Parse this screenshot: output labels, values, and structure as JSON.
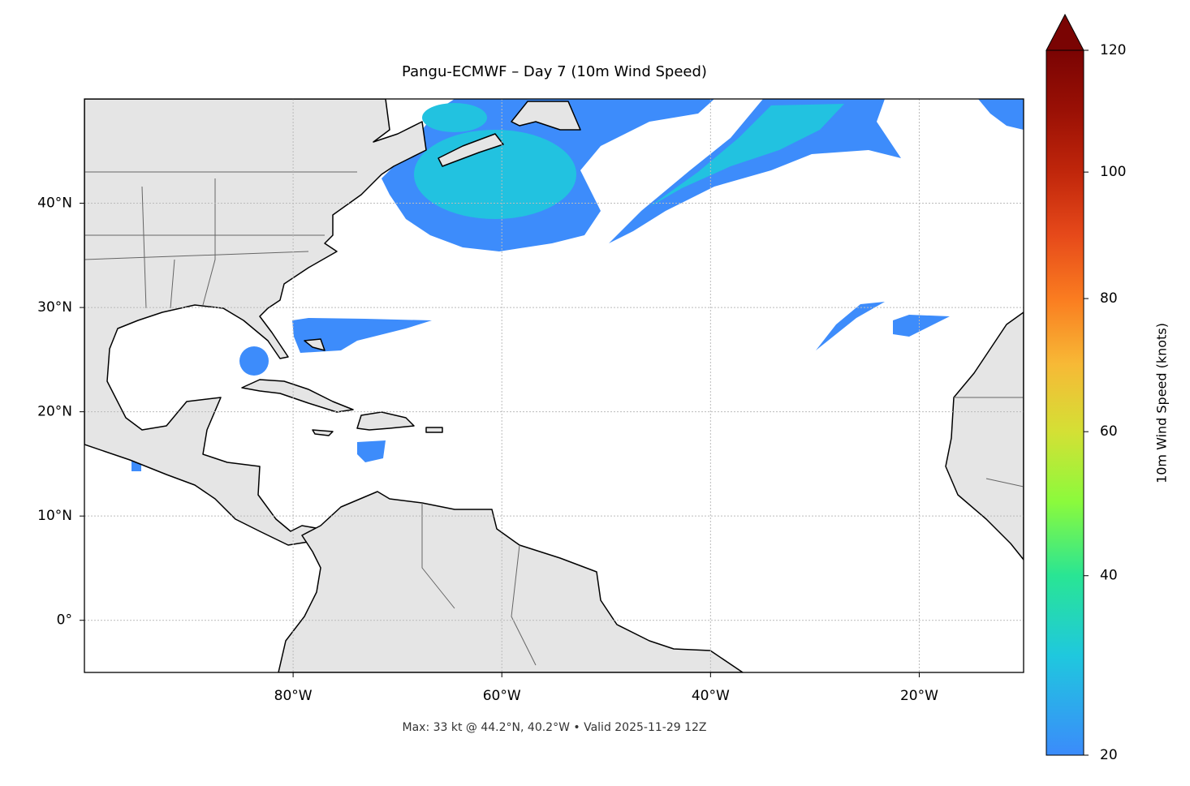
{
  "chart_data": {
    "type": "map",
    "title": "Pangu-ECMWF – Day 7 (10m Wind Speed)",
    "footnote": "Max: 33 kt @ 44.2°N, 40.2°W • Valid 2025-11-29 12Z",
    "xlim": [
      -100,
      -10
    ],
    "ylim": [
      -5,
      50
    ],
    "xticks": [
      {
        "value": -80,
        "label": "80°W"
      },
      {
        "value": -60,
        "label": "60°W"
      },
      {
        "value": -40,
        "label": "40°W"
      },
      {
        "value": -20,
        "label": "20°W"
      }
    ],
    "yticks": [
      {
        "value": 0,
        "label": "0°"
      },
      {
        "value": 10,
        "label": "10°N"
      },
      {
        "value": 20,
        "label": "20°N"
      },
      {
        "value": 30,
        "label": "30°N"
      },
      {
        "value": 40,
        "label": "40°N"
      }
    ],
    "grid": true,
    "colorbar": {
      "label": "10m Wind Speed (knots)",
      "clim": [
        20,
        120
      ],
      "ticks": [
        20,
        40,
        60,
        80,
        100,
        120
      ],
      "norm": "power",
      "gamma": 0.85,
      "cmap": "turbo",
      "extend": "max"
    }
  }
}
